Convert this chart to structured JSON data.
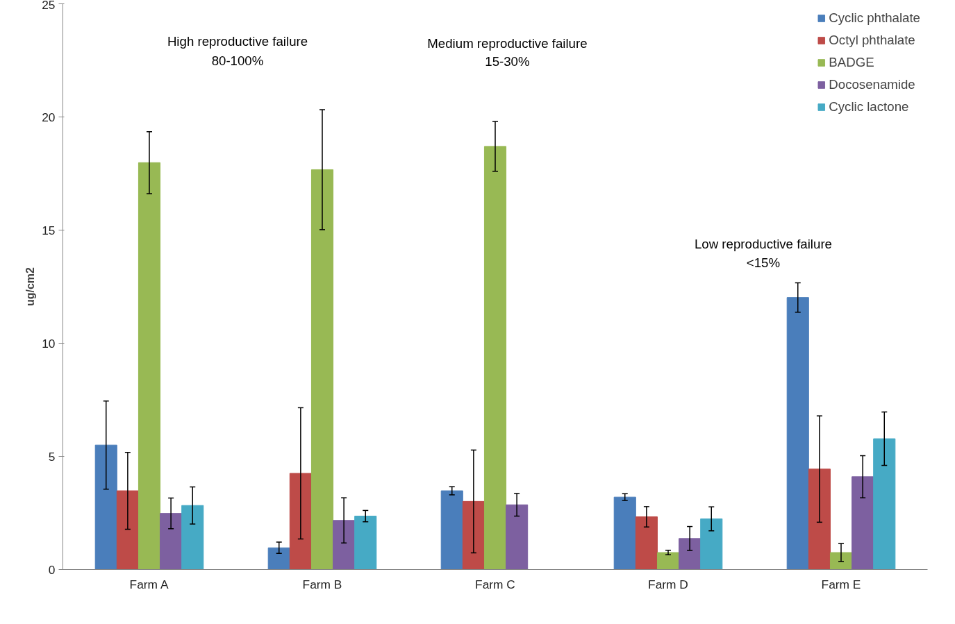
{
  "chart_data": {
    "type": "bar",
    "ylabel": "ug/cm2",
    "categories": [
      "Farm A",
      "Farm B",
      "Farm C",
      "Farm D",
      "Farm E"
    ],
    "series": [
      {
        "name": "Cyclic phthalate",
        "color": "#4a7ebb",
        "values": [
          5.5,
          0.96,
          3.48,
          3.2,
          12.02
        ],
        "errors": [
          1.95,
          0.25,
          0.18,
          0.15,
          0.65
        ]
      },
      {
        "name": "Octyl phthalate",
        "color": "#be4b48",
        "values": [
          3.48,
          4.25,
          3.01,
          2.33,
          4.44
        ],
        "errors": [
          1.7,
          2.9,
          2.27,
          0.45,
          2.35
        ]
      },
      {
        "name": "BADGE",
        "color": "#98b954",
        "values": [
          17.98,
          17.67,
          18.7,
          0.75,
          0.75
        ],
        "errors": [
          1.37,
          2.65,
          1.1,
          0.1,
          0.4
        ]
      },
      {
        "name": "Docosenamide",
        "color": "#7d60a0",
        "values": [
          2.48,
          2.17,
          2.86,
          1.37,
          4.1
        ],
        "errors": [
          0.68,
          1.0,
          0.5,
          0.53,
          0.93
        ]
      },
      {
        "name": "Cyclic lactone",
        "color": "#46aac5",
        "values": [
          2.83,
          2.36,
          null,
          2.24,
          5.78
        ],
        "errors": [
          0.82,
          0.25,
          null,
          0.53,
          1.18
        ]
      }
    ],
    "ylim": [
      0,
      25
    ],
    "yticks": [
      0,
      5,
      10,
      15,
      20,
      25
    ],
    "grid": false,
    "legend": "top right",
    "annotations": [
      "High reproductive failure",
      "80-100%",
      "Medium reproductive failure",
      "15-30%",
      "Low reproductive failure",
      "<15%"
    ]
  }
}
